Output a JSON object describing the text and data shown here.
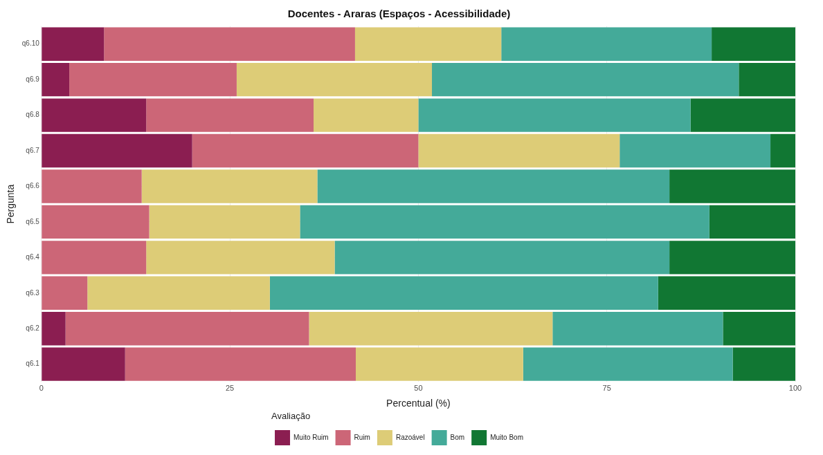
{
  "chart_data": {
    "type": "bar",
    "orientation": "horizontal",
    "stacked": true,
    "title": "Docentes - Araras (Espaços - Acessibilidade)",
    "xlabel": "Percentual (%)",
    "ylabel": "Pergunta",
    "legend_title": "Avaliação",
    "legend": "bottom",
    "grid": true,
    "categories": [
      "q6.10",
      "q6.9",
      "q6.8",
      "q6.7",
      "q6.6",
      "q6.5",
      "q6.4",
      "q6.3",
      "q6.2",
      "q6.1"
    ],
    "xlim": [
      0,
      100
    ],
    "xticks": [
      0,
      25,
      50,
      75,
      100
    ],
    "series": [
      {
        "name": "Muito Ruim",
        "color": "#8b1e51",
        "values": [
          8.3,
          3.7,
          13.9,
          20,
          0,
          0,
          0,
          0,
          3.2,
          11.1
        ]
      },
      {
        "name": "Ruim",
        "color": "#cc6677",
        "values": [
          33.3,
          22.2,
          22.2,
          30,
          13.3,
          14.3,
          13.9,
          6.1,
          32.3,
          30.6
        ]
      },
      {
        "name": "Razoável",
        "color": "#ddcc77",
        "values": [
          19.4,
          25.9,
          13.9,
          26.7,
          23.3,
          20,
          25,
          24.2,
          32.3,
          22.2
        ]
      },
      {
        "name": "Bom",
        "color": "#44aa99",
        "values": [
          27.9,
          40.7,
          36.1,
          20,
          46.7,
          54.3,
          44.4,
          51.5,
          22.6,
          27.8
        ]
      },
      {
        "name": "Muito Bom",
        "color": "#117733",
        "values": [
          11.1,
          7.5,
          13.9,
          3.3,
          16.7,
          11.4,
          16.7,
          18.2,
          9.6,
          8.3
        ]
      }
    ]
  }
}
